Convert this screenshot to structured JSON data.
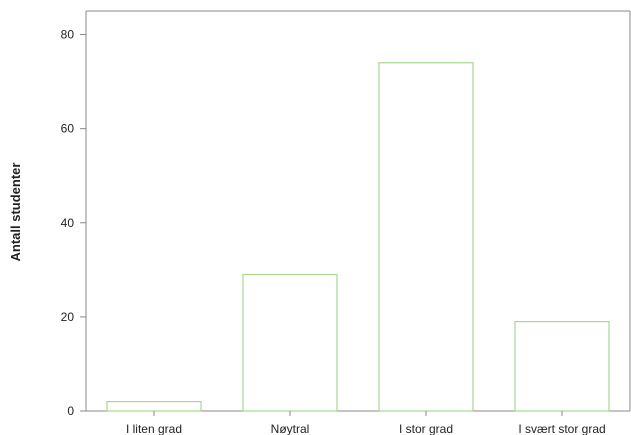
{
  "chart_data": {
    "type": "bar",
    "title": "",
    "xlabel": "",
    "ylabel": "Antall studenter",
    "categories": [
      "I liten grad",
      "Nøytral",
      "I stor grad",
      "I svært stor grad"
    ],
    "values": [
      2,
      29,
      74,
      19
    ],
    "ylim": [
      0,
      85
    ],
    "yticks": [
      0,
      20,
      40,
      60,
      80
    ],
    "grid": false,
    "legend": "none",
    "colors": {
      "bar_fill": "#ffffff",
      "bar_stroke": "#a8d890",
      "axis": "#888888"
    }
  }
}
